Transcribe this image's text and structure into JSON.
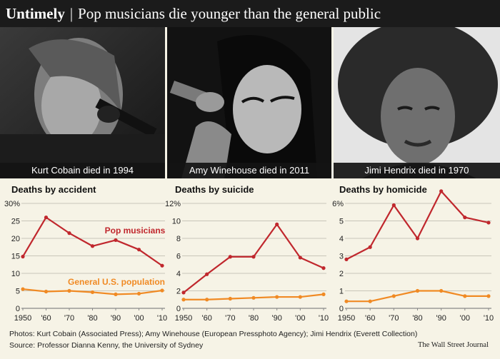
{
  "header": {
    "title_bold": "Untimely",
    "separator": "|",
    "title_rest": "Pop musicians die younger than the general public"
  },
  "photos": [
    {
      "caption": "Kurt Cobain died in 1994"
    },
    {
      "caption": "Amy Winehouse died in 2011"
    },
    {
      "caption": "Jimi Hendrix died in 1970"
    }
  ],
  "colors": {
    "pop": "#c0272d",
    "general": "#f08a24",
    "background": "#f6f3e6",
    "header": "#1b1b1b"
  },
  "chart_data": [
    {
      "type": "line",
      "title": "Deaths by accident",
      "x": [
        1950,
        1960,
        1970,
        1980,
        1990,
        2000,
        2010
      ],
      "x_tick_labels": [
        "1950",
        "'60",
        "'70",
        "'80",
        "'90",
        "'00",
        "'10"
      ],
      "y_ticks": [
        0,
        5,
        10,
        15,
        20,
        25,
        30
      ],
      "y_tick_labels": [
        "0",
        "5",
        "10",
        "15",
        "20",
        "25",
        "30%"
      ],
      "ylim": [
        0,
        30
      ],
      "series": [
        {
          "name": "Pop musicians",
          "values": [
            14.8,
            26,
            21.5,
            17.8,
            19.5,
            16.8,
            12.2
          ]
        },
        {
          "name": "General U.S. population",
          "values": [
            5.5,
            4.8,
            5,
            4.6,
            4,
            4.2,
            5.1
          ]
        }
      ],
      "annotations": [
        "Pop musicians",
        "General U.S. population"
      ]
    },
    {
      "type": "line",
      "title": "Deaths by suicide",
      "x": [
        1950,
        1960,
        1970,
        1980,
        1990,
        2000,
        2010
      ],
      "x_tick_labels": [
        "1950",
        "'60",
        "'70",
        "'80",
        "'90",
        "'00",
        "'10"
      ],
      "y_ticks": [
        0,
        2,
        4,
        6,
        8,
        10,
        12
      ],
      "y_tick_labels": [
        "0",
        "2",
        "4",
        "6",
        "8",
        "10",
        "12%"
      ],
      "ylim": [
        0,
        12
      ],
      "series": [
        {
          "name": "Pop musicians",
          "values": [
            1.8,
            3.9,
            5.9,
            5.9,
            9.6,
            5.8,
            4.6
          ]
        },
        {
          "name": "General U.S. population",
          "values": [
            1,
            1,
            1.1,
            1.2,
            1.3,
            1.3,
            1.6
          ]
        }
      ]
    },
    {
      "type": "line",
      "title": "Deaths by homicide",
      "x": [
        1950,
        1960,
        1970,
        1980,
        1990,
        2000,
        2010
      ],
      "x_tick_labels": [
        "1950",
        "'60",
        "'70",
        "'80",
        "'90",
        "'00",
        "'10"
      ],
      "y_ticks": [
        0,
        1,
        2,
        3,
        4,
        5,
        6
      ],
      "y_tick_labels": [
        "0",
        "1",
        "2",
        "3",
        "4",
        "5",
        "6%"
      ],
      "ylim": [
        0,
        6
      ],
      "series": [
        {
          "name": "Pop musicians",
          "values": [
            2.8,
            3.5,
            5.9,
            4,
            6.7,
            5.2,
            4.9
          ]
        },
        {
          "name": "General U.S. population",
          "values": [
            0.4,
            0.4,
            0.7,
            1,
            1,
            0.7,
            0.7
          ]
        }
      ]
    }
  ],
  "footer": {
    "credits": "Photos: Kurt Cobain (Associated Press); Amy Winehouse (European Pressphoto Agency);  Jimi Hendrix (Everett Collection)",
    "source": "Source: Professor Dianna Kenny, the University of Sydney",
    "brand": "The Wall Street Journal"
  }
}
